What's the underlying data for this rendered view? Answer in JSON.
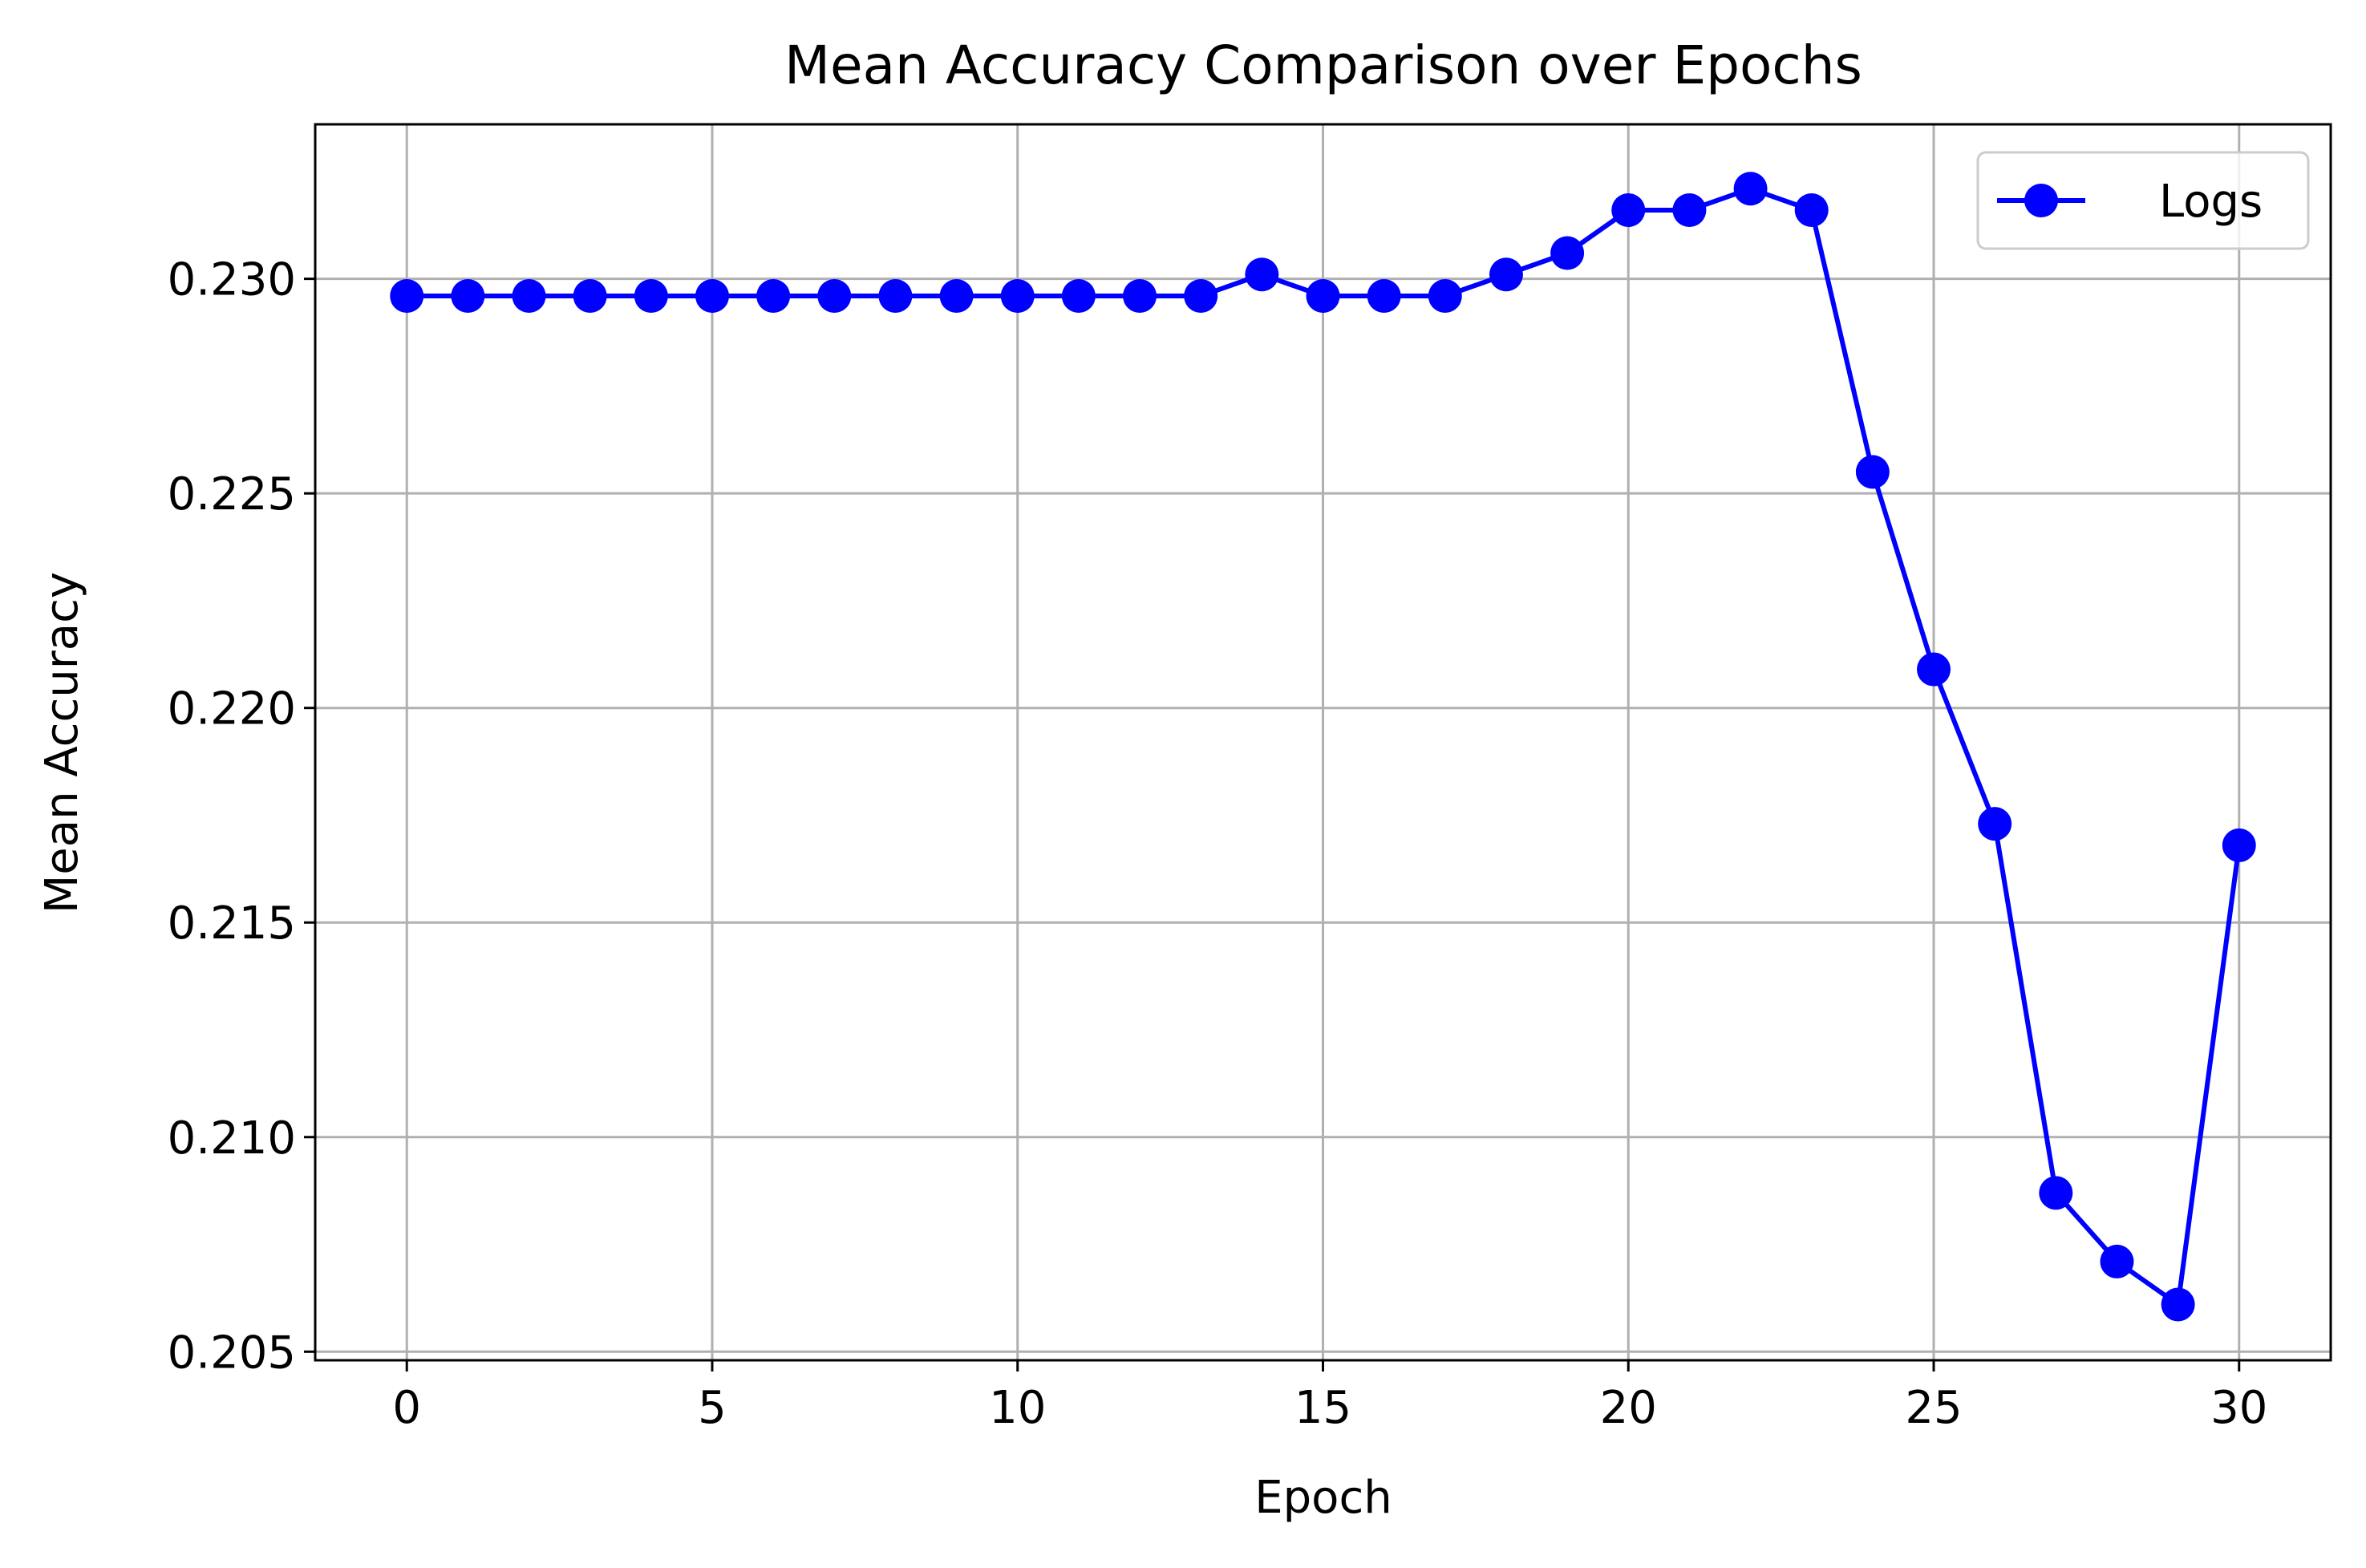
{
  "chart_data": {
    "type": "line",
    "title": "Mean Accuracy Comparison over Epochs",
    "xlabel": "Epoch",
    "ylabel": "Mean Accuracy",
    "xlim": [
      -1.5,
      31.5
    ],
    "ylim": [
      0.2048,
      0.2336
    ],
    "x_ticks": [
      0,
      5,
      10,
      15,
      20,
      25,
      30
    ],
    "x_tick_labels": [
      "0",
      "5",
      "10",
      "15",
      "20",
      "25",
      "30"
    ],
    "y_ticks": [
      0.205,
      0.21,
      0.215,
      0.22,
      0.225,
      0.23
    ],
    "y_tick_labels": [
      "0.205",
      "0.210",
      "0.215",
      "0.220",
      "0.225",
      "0.230"
    ],
    "grid": true,
    "legend": {
      "placement": "top-right",
      "entries": [
        "Logs"
      ]
    },
    "series": [
      {
        "name": "Logs",
        "color": "#0000ff",
        "marker": "circle",
        "x": [
          0,
          1,
          2,
          3,
          4,
          5,
          6,
          7,
          8,
          9,
          10,
          11,
          12,
          13,
          14,
          15,
          16,
          17,
          18,
          19,
          20,
          21,
          22,
          23,
          24,
          25,
          26,
          27,
          28,
          29,
          30
        ],
        "y": [
          0.2296,
          0.2296,
          0.2296,
          0.2296,
          0.2296,
          0.2296,
          0.2296,
          0.2296,
          0.2296,
          0.2296,
          0.2296,
          0.2296,
          0.2296,
          0.2296,
          0.2301,
          0.2296,
          0.2296,
          0.2296,
          0.2301,
          0.2306,
          0.2316,
          0.2316,
          0.2321,
          0.2316,
          0.2255,
          0.2209,
          0.2173,
          0.2087,
          0.2071,
          0.2061,
          0.2168
        ]
      }
    ]
  }
}
